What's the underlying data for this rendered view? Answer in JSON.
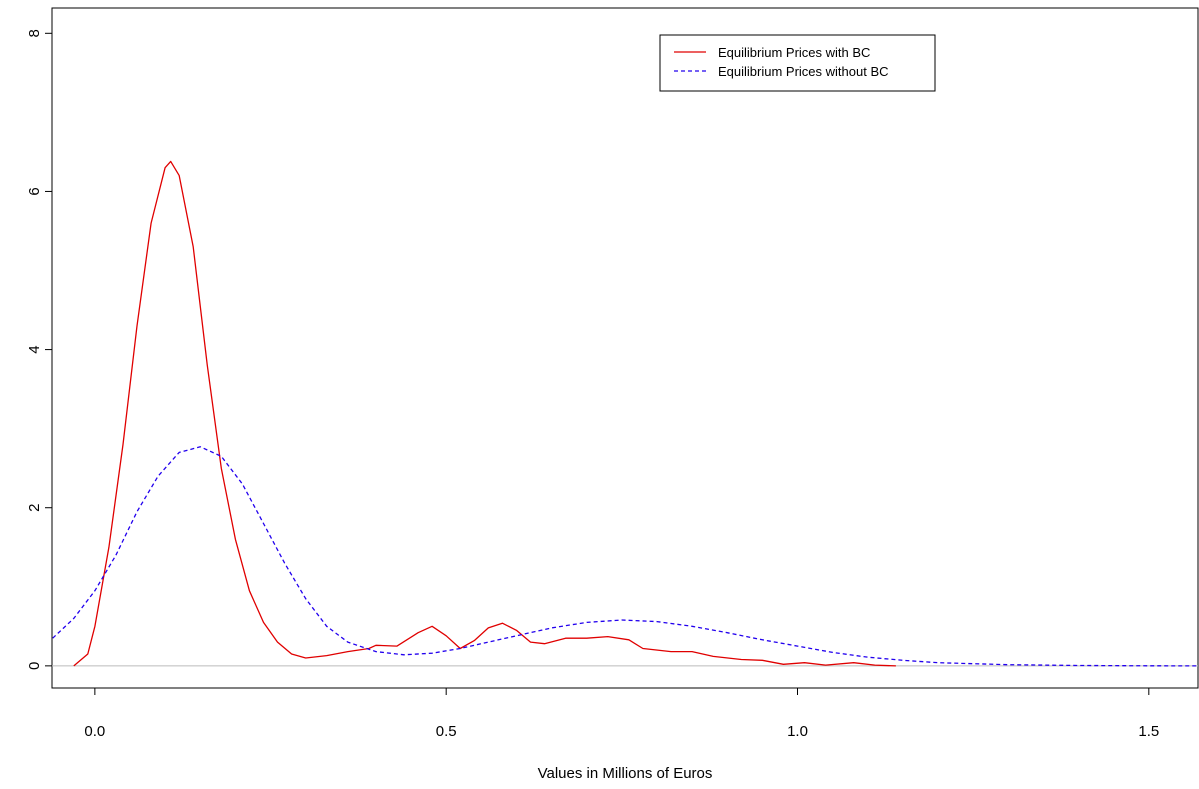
{
  "chart_data": {
    "type": "line",
    "xlabel": "Values in Millions of Euros",
    "xlim": [
      -0.061,
      1.57
    ],
    "ylim": [
      -0.28,
      8.32
    ],
    "xticks": [
      {
        "value": 0,
        "label": "0.0"
      },
      0.5,
      {
        "value": 1,
        "label": "1.0"
      },
      1.5
    ],
    "yticks": [
      0,
      2,
      4,
      6,
      8
    ],
    "zero_line": true,
    "legend": "top-right",
    "series": [
      {
        "name": "Equilibrium Prices with BC",
        "color": "#e00000",
        "dash": false,
        "x": [
          -0.03,
          -0.01,
          0.0,
          0.02,
          0.04,
          0.06,
          0.08,
          0.1,
          0.108,
          0.12,
          0.14,
          0.16,
          0.18,
          0.2,
          0.22,
          0.24,
          0.26,
          0.28,
          0.3,
          0.33,
          0.36,
          0.39,
          0.4,
          0.43,
          0.46,
          0.48,
          0.5,
          0.52,
          0.54,
          0.56,
          0.58,
          0.6,
          0.62,
          0.64,
          0.67,
          0.7,
          0.73,
          0.76,
          0.78,
          0.82,
          0.85,
          0.88,
          0.92,
          0.95,
          0.98,
          1.01,
          1.04,
          1.08,
          1.11,
          1.14
        ],
        "values": [
          0.0,
          0.15,
          0.5,
          1.5,
          2.8,
          4.3,
          5.6,
          6.3,
          6.38,
          6.2,
          5.3,
          3.8,
          2.5,
          1.6,
          0.95,
          0.55,
          0.3,
          0.15,
          0.1,
          0.13,
          0.18,
          0.22,
          0.26,
          0.25,
          0.42,
          0.5,
          0.38,
          0.22,
          0.32,
          0.48,
          0.54,
          0.45,
          0.3,
          0.28,
          0.35,
          0.35,
          0.37,
          0.33,
          0.22,
          0.18,
          0.18,
          0.12,
          0.08,
          0.07,
          0.02,
          0.04,
          0.01,
          0.04,
          0.01,
          0.0
        ]
      },
      {
        "name": "Equilibrium Prices without BC",
        "color": "#2200ee",
        "dash": true,
        "x": [
          -0.06,
          -0.03,
          0.0,
          0.03,
          0.06,
          0.09,
          0.12,
          0.15,
          0.18,
          0.21,
          0.24,
          0.27,
          0.3,
          0.33,
          0.36,
          0.4,
          0.44,
          0.48,
          0.52,
          0.56,
          0.6,
          0.65,
          0.7,
          0.75,
          0.8,
          0.85,
          0.9,
          0.95,
          1.0,
          1.05,
          1.1,
          1.15,
          1.2,
          1.3,
          1.4,
          1.5,
          1.57
        ],
        "values": [
          0.35,
          0.6,
          0.95,
          1.4,
          1.95,
          2.4,
          2.7,
          2.77,
          2.65,
          2.3,
          1.8,
          1.3,
          0.85,
          0.5,
          0.3,
          0.18,
          0.14,
          0.16,
          0.22,
          0.3,
          0.38,
          0.48,
          0.55,
          0.58,
          0.56,
          0.5,
          0.42,
          0.33,
          0.25,
          0.17,
          0.11,
          0.07,
          0.04,
          0.015,
          0.005,
          0.001,
          0.0
        ]
      }
    ]
  }
}
